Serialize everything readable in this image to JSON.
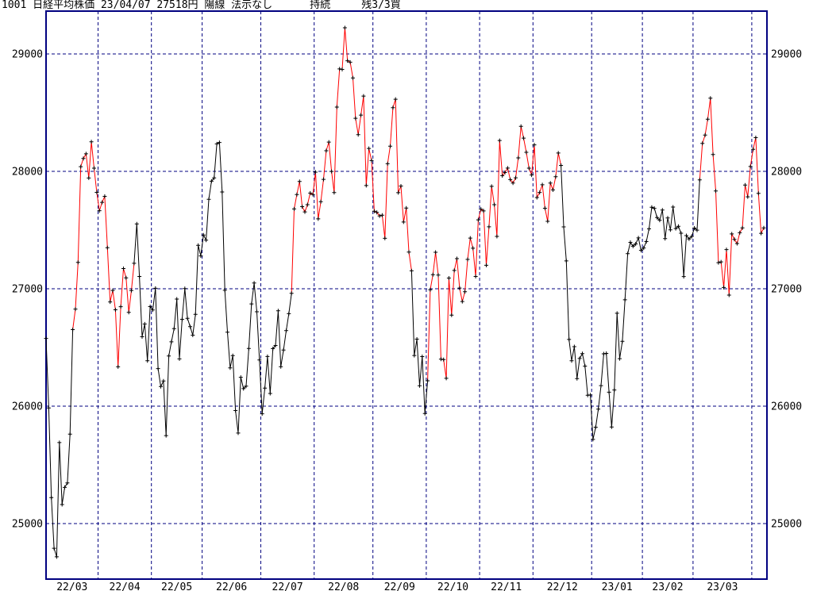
{
  "header": {
    "title": "1001 日経平均株価 23/04/07 27518円 陽線 法示なし      持続     残3/3買",
    "code": "1001",
    "instrument": "日経平均株価",
    "date": "23/04/07",
    "price": "27518円",
    "candle": "陽線",
    "note": "法示なし",
    "status": "持続",
    "remaining": "残3/3買"
  },
  "colors": {
    "background": "#ffffff",
    "axis": "#000080",
    "grid": "#000080",
    "line_black": "#000000",
    "line_red": "#ff0000",
    "marker": "#000000",
    "text": "#000000"
  },
  "chart_data": {
    "type": "line",
    "title": "1001 日経平均株価 23/04/07 27518円 陽線 法示なし 持続 残3/3買",
    "xlabel": "",
    "ylabel": "",
    "ylim": [
      24530,
      29365
    ],
    "yticks": [
      29000,
      28000,
      27000,
      26000,
      25000
    ],
    "ytick_labels_both_sides": true,
    "grid": "dashed",
    "legend": "none",
    "marker": "plus",
    "x_month_labels": [
      "22/03",
      "22/04",
      "22/05",
      "22/06",
      "22/07",
      "22/08",
      "22/09",
      "22/10",
      "22/11",
      "22/12",
      "23/01",
      "23/02",
      "23/03"
    ],
    "month_point_counts": [
      20,
      20,
      19,
      22,
      20,
      22,
      20,
      20,
      20,
      22,
      19,
      19,
      22,
      5
    ],
    "series_name": "日経平均株価 終値",
    "values": [
      26577,
      25985,
      25221,
      24790,
      24717,
      25690,
      25162,
      25308,
      25346,
      25762,
      26652,
      26827,
      27224,
      28040,
      28110,
      28149,
      27943,
      28252,
      28027,
      27821,
      27665,
      27736,
      27787,
      27350,
      26888,
      26986,
      26821,
      26335,
      26847,
      27172,
      27093,
      26799,
      26985,
      27217,
      27553,
      27105,
      26591,
      26700,
      26387,
      26848,
      26819,
      27004,
      26320,
      26167,
      26214,
      25749,
      26428,
      26548,
      26660,
      26912,
      26403,
      26740,
      27002,
      26748,
      26678,
      26605,
      26782,
      27370,
      27280,
      27458,
      27414,
      27762,
      27916,
      27944,
      28234,
      28246,
      27824,
      26987,
      26630,
      26326,
      26431,
      25963,
      25771,
      26246,
      26149,
      26171,
      26492,
      26871,
      27049,
      26804,
      26393,
      25935,
      26154,
      26423,
      26108,
      26490,
      26517,
      26812,
      26336,
      26478,
      26643,
      26788,
      26961,
      27680,
      27803,
      27914,
      27699,
      27655,
      27716,
      27815,
      27802,
      27993,
      27595,
      27742,
      27932,
      28176,
      28249,
      27999,
      27819,
      28547,
      28872,
      28868,
      29223,
      28942,
      28930,
      28795,
      28452,
      28313,
      28479,
      28641,
      27879,
      28195,
      28092,
      27661,
      27651,
      27620,
      27627,
      27430,
      28065,
      28215,
      28542,
      28614,
      27818,
      27875,
      27568,
      27688,
      27313,
      27153,
      26432,
      26571,
      26174,
      26422,
      25937,
      26216,
      26992,
      27120,
      27311,
      27116,
      26401,
      26397,
      26237,
      27091,
      26776,
      27156,
      27257,
      27006,
      26891,
      26975,
      27250,
      27432,
      27345,
      27105,
      27587,
      27678,
      27663,
      27200,
      27528,
      27872,
      27716,
      27446,
      28263,
      27963,
      27990,
      28028,
      27930,
      27900,
      27945,
      28115,
      28383,
      28283,
      28162,
      28027,
      27969,
      28226,
      27777,
      27820,
      27886,
      27686,
      27574,
      27901,
      27842,
      27954,
      28156,
      28051,
      27527,
      27237,
      26568,
      26387,
      26507,
      26235,
      26406,
      26448,
      26341,
      26093,
      26095,
      25717,
      25821,
      25974,
      26175,
      26446,
      26449,
      26119,
      25822,
      26138,
      26791,
      26405,
      26553,
      26906,
      27299,
      27395,
      27362,
      27382,
      27433,
      27327,
      27347,
      27402,
      27510,
      27694,
      27685,
      27606,
      27584,
      27671,
      27427,
      27603,
      27502,
      27696,
      27513,
      27532,
      27473,
      27104,
      27453,
      27424,
      27446,
      27517,
      27499,
      27927,
      28238,
      28309,
      28444,
      28623,
      28144,
      27833,
      27222,
      27229,
      27011,
      27334,
      26946,
      27467,
      27420,
      27385,
      27477,
      27518,
      27884,
      27783,
      28041,
      28188,
      28287,
      27813,
      27472,
      27518
    ],
    "red_point_ranges": [
      [
        11,
        33
      ],
      [
        93,
        137
      ],
      [
        144,
        193
      ],
      [
        246,
        269
      ]
    ]
  }
}
